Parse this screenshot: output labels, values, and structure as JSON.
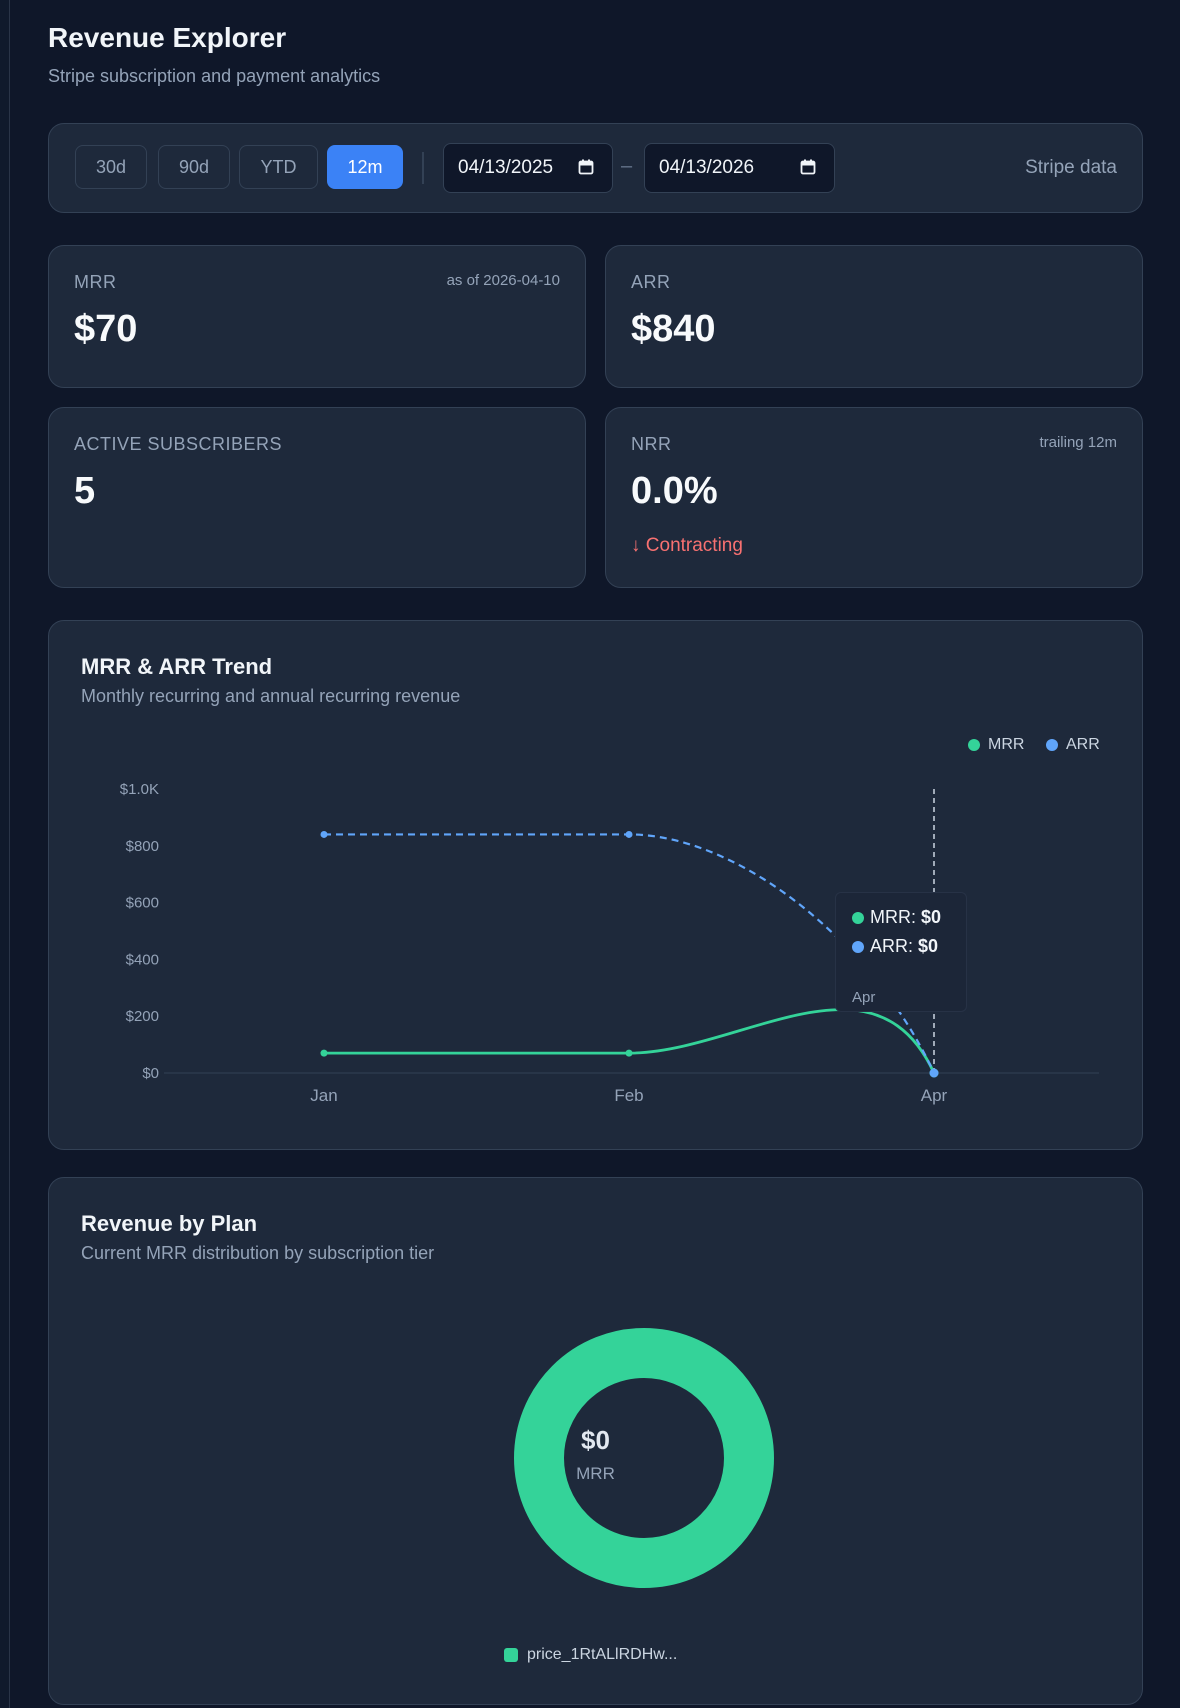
{
  "header": {
    "title": "Revenue Explorer",
    "subtitle": "Stripe subscription and payment analytics"
  },
  "toolbar": {
    "ranges": [
      "30d",
      "90d",
      "YTD",
      "12m"
    ],
    "active_range": "12m",
    "start_date": "04/13/2025",
    "end_date": "04/13/2026",
    "date_separator": "–",
    "source_label": "Stripe data"
  },
  "stats": {
    "mrr": {
      "label": "MRR",
      "value": "$70",
      "note": "as of 2026-04-10"
    },
    "arr": {
      "label": "ARR",
      "value": "$840"
    },
    "subscribers": {
      "label": "ACTIVE SUBSCRIBERS",
      "value": "5"
    },
    "nrr": {
      "label": "NRR",
      "value": "0.0%",
      "note": "trailing 12m",
      "trend": "↓ Contracting"
    }
  },
  "trend_panel": {
    "title": "MRR & ARR Trend",
    "subtitle": "Monthly recurring and annual recurring revenue",
    "tooltip": {
      "mrr_label": "MRR:",
      "mrr_value": "$0",
      "arr_label": "ARR:",
      "arr_value": "$0",
      "period": "Apr"
    }
  },
  "plan_panel": {
    "title": "Revenue by Plan",
    "subtitle": "Current MRR distribution by subscription tier",
    "center_value": "$0",
    "center_label": "MRR",
    "legend_label": "price_1RtALlRDHw..."
  },
  "colors": {
    "mrr": "#34d399",
    "arr": "#60a5fa",
    "accent": "#3b82f6",
    "negative": "#f87171"
  },
  "chart_data": [
    {
      "type": "line",
      "x": [
        "Jan",
        "Feb",
        "Apr"
      ],
      "series": [
        {
          "name": "MRR",
          "values": [
            70,
            70,
            0
          ],
          "color": "#34d399",
          "style": "solid"
        },
        {
          "name": "ARR",
          "values": [
            840,
            840,
            0
          ],
          "color": "#60a5fa",
          "style": "dashed"
        }
      ],
      "ylim": [
        0,
        1000
      ],
      "yticks": [
        0,
        200,
        400,
        600,
        800,
        1000
      ],
      "ytick_labels": [
        "$0",
        "$200",
        "$400",
        "$600",
        "$800",
        "$1.0K"
      ],
      "legend": "top-right"
    },
    {
      "type": "pie",
      "categories": [
        "price_1RtALlRDHw..."
      ],
      "values": [
        100
      ],
      "donut": true
    }
  ]
}
